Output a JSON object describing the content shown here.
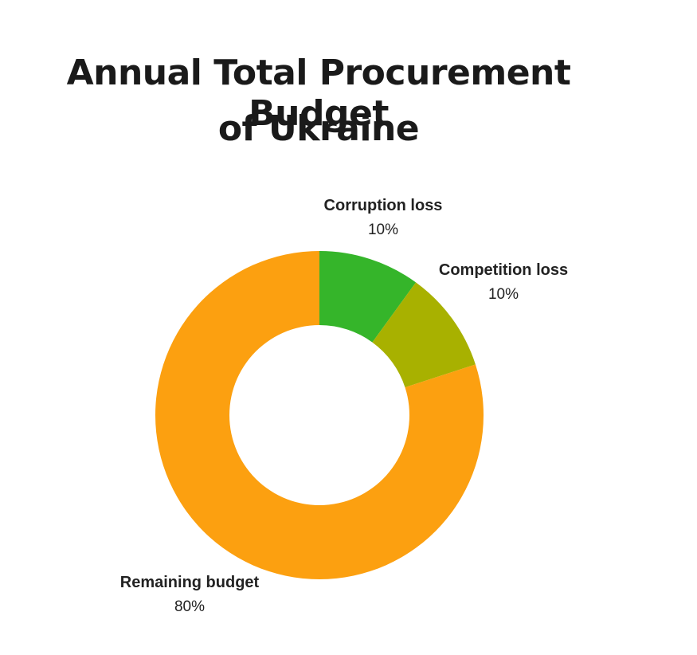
{
  "chart_data": {
    "type": "pie",
    "variant": "donut",
    "title_lines": [
      "Annual Total Procurement Budget",
      "of Ukraine"
    ],
    "slices": [
      {
        "label": "Corruption loss",
        "value": 10,
        "value_label": "10%",
        "color": "#35b52a"
      },
      {
        "label": "Competition loss",
        "value": 10,
        "value_label": "10%",
        "color": "#a8b100"
      },
      {
        "label": "Remaining budget",
        "value": 80,
        "value_label": "80%",
        "color": "#fca010"
      }
    ],
    "legend": "none",
    "start": "top",
    "direction": "clockwise"
  }
}
